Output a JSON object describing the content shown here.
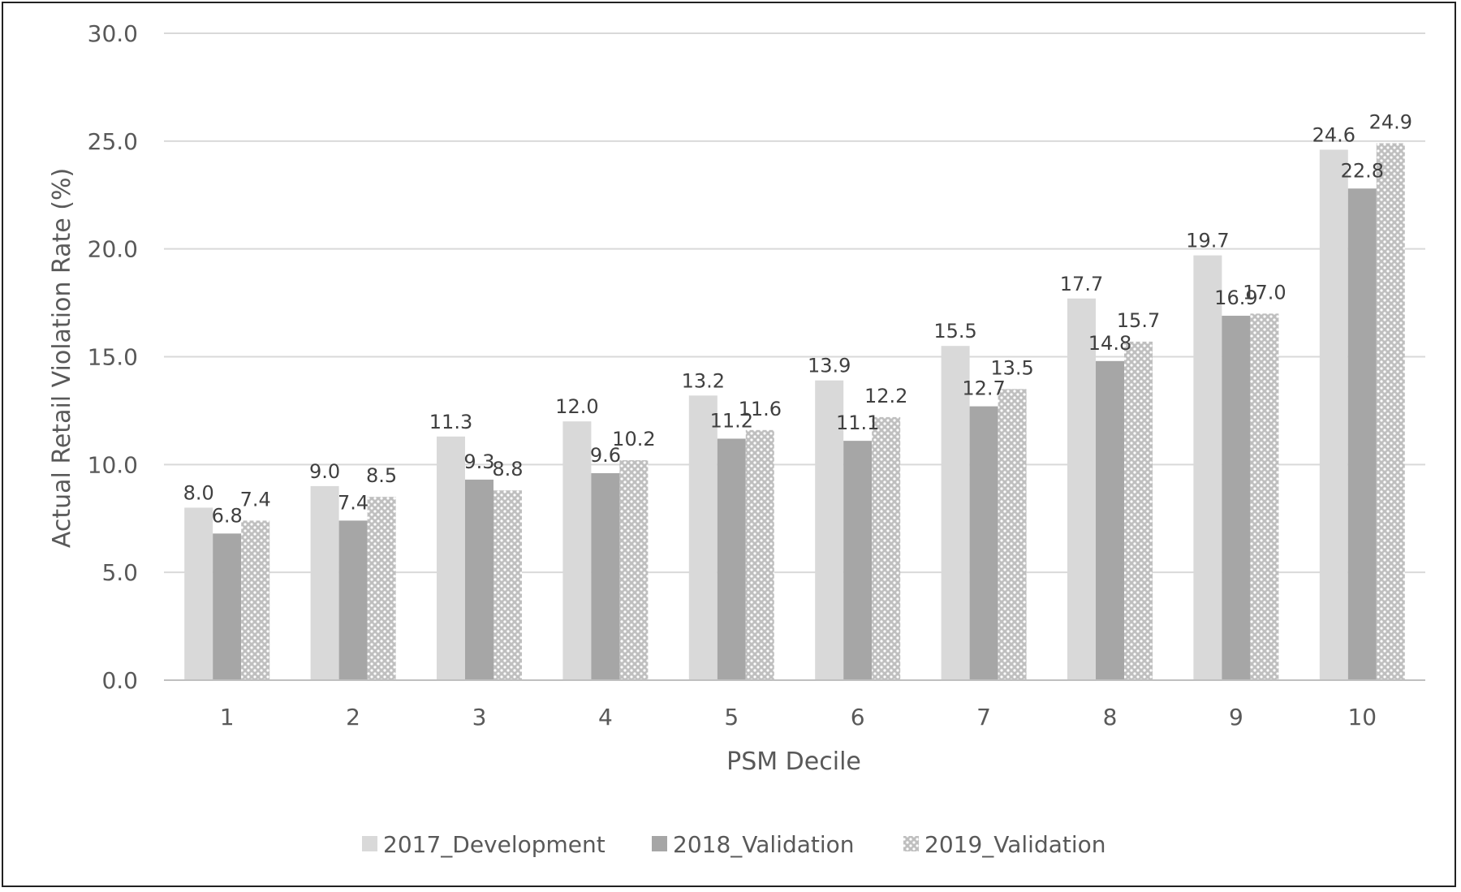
{
  "chart_data": {
    "type": "bar",
    "title": "",
    "xlabel": "PSM Decile",
    "ylabel": "Actual Retail Violation Rate (%)",
    "ylim": [
      0,
      30
    ],
    "yticks": [
      "0.0",
      "5.0",
      "10.0",
      "15.0",
      "20.0",
      "25.0",
      "30.0"
    ],
    "categories": [
      "1",
      "2",
      "3",
      "4",
      "5",
      "6",
      "7",
      "8",
      "9",
      "10"
    ],
    "grid": true,
    "legend_position": "bottom",
    "series": [
      {
        "name": "2017_Development",
        "color": "#d9d9d9",
        "pattern": "solid",
        "values": [
          8.0,
          9.0,
          11.3,
          12.0,
          13.2,
          13.9,
          15.5,
          17.7,
          19.7,
          24.6
        ],
        "labels": [
          "8.0",
          "9.0",
          "11.3",
          "12.0",
          "13.2",
          "13.9",
          "15.5",
          "17.7",
          "19.7",
          "24.6"
        ]
      },
      {
        "name": "2018_Validation",
        "color": "#a6a6a6",
        "pattern": "solid",
        "values": [
          6.8,
          7.4,
          9.3,
          9.6,
          11.2,
          11.1,
          12.7,
          14.8,
          16.9,
          22.8
        ],
        "labels": [
          "6.8",
          "7.4",
          "9.3",
          "9.6",
          "11.2",
          "11.1",
          "12.7",
          "14.8",
          "16.9",
          "22.8"
        ]
      },
      {
        "name": "2019_Validation",
        "color": "#bfbfbf",
        "pattern": "dotted",
        "values": [
          7.4,
          8.5,
          8.8,
          10.2,
          11.6,
          12.2,
          13.5,
          15.7,
          17.0,
          24.9
        ],
        "labels": [
          "7.4",
          "8.5",
          "8.8",
          "10.2",
          "11.6",
          "12.2",
          "13.5",
          "15.7",
          "17.0",
          "24.9"
        ]
      }
    ]
  }
}
